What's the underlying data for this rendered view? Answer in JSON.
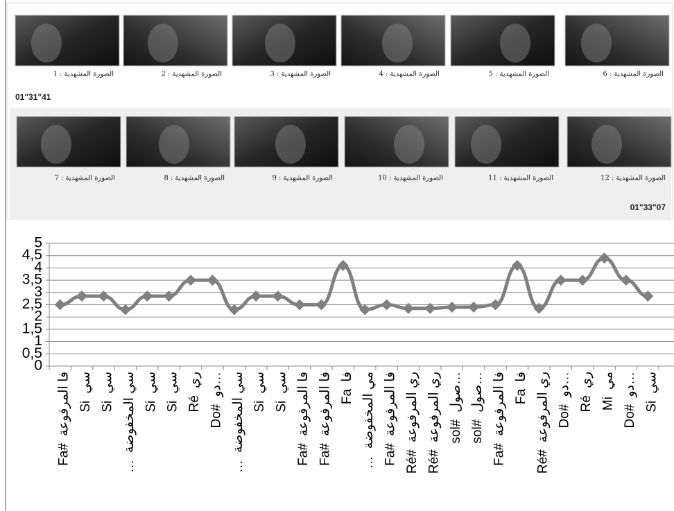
{
  "strip": {
    "captions": [
      "الصورة المشهدية : 1",
      "الصورة المشهدية : 2",
      "الصورة المشهدية : 3",
      "الصورة المشهدية : 4",
      "الصورة المشهدية : 5",
      "الصورة المشهدية : 6",
      "الصورة المشهدية : 7",
      "الصورة المشهدية : 8",
      "الصورة المشهدية : 9",
      "الصورة المشهدية : 10",
      "الصورة المشهدية : 11",
      "الصورة المشهدية : 12"
    ],
    "timecodes": [
      "01\"31\"41",
      "01\"33\"07"
    ]
  },
  "chart_data": {
    "type": "line",
    "categories": [
      [
        "فا المرفوعة",
        "Fa#"
      ],
      [
        "سي",
        "Si"
      ],
      [
        "سي",
        "Si"
      ],
      [
        "سي المخفوضة",
        "…"
      ],
      [
        "سي",
        "Si"
      ],
      [
        "سي",
        "Si"
      ],
      [
        "ري",
        "Ré"
      ],
      [
        "دو…",
        "Do#"
      ],
      [
        "سي المخفوضة",
        "…"
      ],
      [
        "سي",
        "Si"
      ],
      [
        "سي",
        "Si"
      ],
      [
        "فا المرفوعة",
        "Fa#"
      ],
      [
        "فا المرفوعة",
        "Fa#"
      ],
      [
        "فا",
        "Fa"
      ],
      [
        "مي المخفوضة",
        "…"
      ],
      [
        "فا المرفوعة",
        "Fa#"
      ],
      [
        "ري المرفوعة",
        "Ré#"
      ],
      [
        "ري المرفوعة",
        "Ré#"
      ],
      [
        "صول…",
        "sol#"
      ],
      [
        "صول…",
        "sol#"
      ],
      [
        "فا المرفوعة",
        "Fa#"
      ],
      [
        "فا",
        "Fa"
      ],
      [
        "ري المرفوعة",
        "Ré#"
      ],
      [
        "دو…",
        "Do#"
      ],
      [
        "ري",
        "Ré"
      ],
      [
        "مي",
        "Mi"
      ],
      [
        "دو…",
        "Do#"
      ],
      [
        "سي",
        "Si"
      ]
    ],
    "values": [
      2.5,
      2.85,
      2.85,
      2.3,
      2.85,
      2.85,
      3.5,
      3.5,
      2.3,
      2.85,
      2.85,
      2.5,
      2.5,
      4.1,
      2.3,
      2.5,
      2.35,
      2.35,
      2.4,
      2.4,
      2.5,
      4.1,
      2.35,
      3.5,
      3.5,
      4.4,
      3.5,
      2.85
    ],
    "color": "#808080",
    "ylim": [
      0,
      5
    ],
    "yticks": [
      0,
      {
        "value": 0.5,
        "label": "0,5"
      },
      1,
      {
        "value": 1.5,
        "label": "1,5"
      },
      2,
      {
        "value": 2.5,
        "label": "2,5"
      },
      3,
      {
        "value": 3.5,
        "label": "3,5"
      },
      4,
      {
        "value": 4.5,
        "label": "4,5"
      },
      5
    ],
    "grid": true
  }
}
